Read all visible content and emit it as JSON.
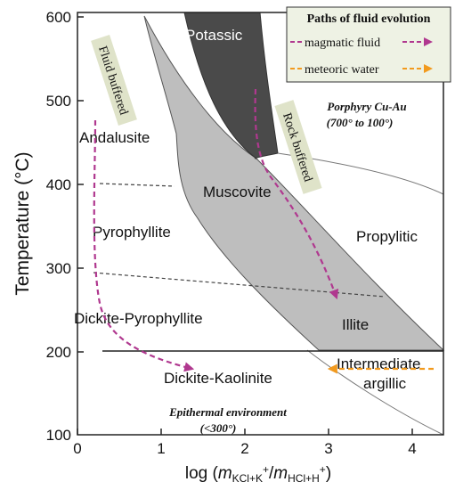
{
  "axes": {
    "x_label_prefix": "log (",
    "x_label_m1": "m",
    "x_label_sub1": "KCl+K",
    "x_label_sup1": "+",
    "x_label_slash": "/",
    "x_label_m2": "m",
    "x_label_sub2": "HCl+H",
    "x_label_sup2": "+",
    "x_label_suffix": ")",
    "y_label": "Temperature (°C)",
    "x_ticks": [
      "0",
      "1",
      "2",
      "3",
      "4"
    ],
    "y_ticks": [
      "600",
      "500",
      "400",
      "300",
      "200",
      "100"
    ],
    "x_range": [
      0,
      4.4
    ],
    "y_range": [
      100,
      600
    ]
  },
  "fields": {
    "potassic": "Potassic",
    "andalusite": "Andalusite",
    "muscovite": "Muscovite",
    "pyrophyllite": "Pyrophyllite",
    "propylitic": "Propylitic",
    "dickite_pyrophyllite": "Dickite-Pyrophyllite",
    "illite": "Illite",
    "dickite_kaolinite": "Dickite-Kaolinite",
    "intermediate_1": "Intermediate",
    "intermediate_2": "argillic"
  },
  "annotations": {
    "fluid_buffered": "Fluid buffered",
    "rock_buffered": "Rock buffered",
    "porphyry_1": "Porphyry Cu-Au",
    "porphyry_2": "(700° to 100°)",
    "epithermal_1": "Epithermal environment",
    "epithermal_2": "(<300°)"
  },
  "legend": {
    "title": "Paths of fluid evolution",
    "items": [
      {
        "label": "magmatic fluid",
        "color": "#b0388f"
      },
      {
        "label": "meteoric water",
        "color": "#f29a1e"
      }
    ]
  },
  "colors": {
    "potassic_fill": "#4a4a4a",
    "sericite_fill": "#bebebe",
    "legend_bg": "#eef2e4",
    "label_bg": "#dfe3c9"
  }
}
